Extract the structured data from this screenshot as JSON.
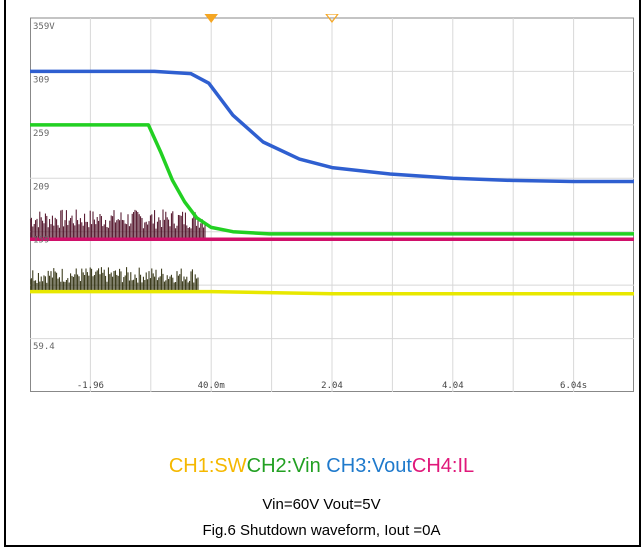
{
  "chart_data": {
    "type": "line",
    "title": "",
    "x_unit": "s",
    "xlim": [
      -2.96,
      7.04
    ],
    "x_tick_labels": [
      "-1.96",
      "40.0m",
      "2.04",
      "4.04",
      "6.04s"
    ],
    "x_tick_values": [
      -1.96,
      0.04,
      2.04,
      4.04,
      6.04
    ],
    "y_tick_labels": [
      "359V",
      "309",
      "259",
      "209",
      "159",
      "59.4"
    ],
    "trigger_markers": [
      0.04,
      2.04
    ],
    "series": [
      {
        "name": "CH3:Vout",
        "color": "#2f5fd0",
        "points": [
          [
            -2.96,
            309
          ],
          [
            -0.9,
            309
          ],
          [
            -0.3,
            307
          ],
          [
            0.0,
            298
          ],
          [
            0.4,
            268
          ],
          [
            0.9,
            243
          ],
          [
            1.5,
            227
          ],
          [
            2.04,
            219
          ],
          [
            3.0,
            213
          ],
          [
            4.04,
            209
          ],
          [
            5.0,
            207
          ],
          [
            6.04,
            206
          ],
          [
            7.04,
            206
          ]
        ]
      },
      {
        "name": "CH2:Vin",
        "color": "#22d022",
        "points": [
          [
            -2.96,
            259
          ],
          [
            -1.0,
            259
          ],
          [
            -0.8,
            234
          ],
          [
            -0.6,
            207
          ],
          [
            -0.4,
            187
          ],
          [
            -0.2,
            172
          ],
          [
            0.04,
            163
          ],
          [
            0.4,
            159
          ],
          [
            1.0,
            157
          ],
          [
            2.04,
            157
          ],
          [
            7.04,
            157
          ]
        ]
      },
      {
        "name": "CH4:IL",
        "color": "#d0106a",
        "points": [
          [
            -2.96,
            152
          ],
          [
            7.04,
            152
          ]
        ]
      },
      {
        "name": "CH1:SW",
        "color": "#e8e800",
        "points": [
          [
            -2.96,
            103
          ],
          [
            0.04,
            103
          ],
          [
            2.04,
            101
          ],
          [
            7.04,
            101
          ]
        ]
      }
    ],
    "bursts": [
      {
        "channel": "CH4:IL",
        "x_range": [
          -2.96,
          -0.06
        ],
        "base": 152,
        "peak": 180,
        "color": "#4a0820"
      },
      {
        "channel": "CH1:SW",
        "x_range": [
          -2.96,
          -0.16
        ],
        "base": 103,
        "peak": 126,
        "color": "#2a2a08"
      }
    ]
  },
  "legend": {
    "ch1": "CH1:SW",
    "ch2": "CH2:Vin",
    "ch3": " CH3:Vout",
    "ch4": "CH4:IL",
    "ch1_color": "#f5b800",
    "ch2_color": "#22a022",
    "ch3_color": "#1f7acc",
    "ch4_color": "#e0187a"
  },
  "caption": {
    "line1": "Vin=60V Vout=5V",
    "line2": "Fig.6    Shutdown waveform, Iout =0A"
  }
}
